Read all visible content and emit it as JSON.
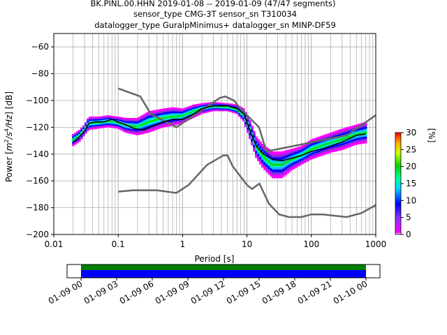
{
  "title": {
    "line1": "BK.PINL.00.HHN   2019-01-08 -- 2019-01-09  (47/47 segments)",
    "line2": "sensor_type CMG-3T sensor_sn T310034",
    "line3": "datalogger_type GuralpMinimus+ datalogger_sn MINP-DF59"
  },
  "chart_data": {
    "type": "heatmap",
    "xlabel": "Period [s]",
    "ylabel_parts": [
      "Power [",
      "m",
      "2",
      "/s",
      "4",
      "/Hz",
      "] [dB]"
    ],
    "xscale": "log",
    "xlim": [
      0.01,
      1000
    ],
    "ylim": [
      -200,
      -50
    ],
    "x_tick_values": [
      0.01,
      0.1,
      1,
      10,
      100,
      1000
    ],
    "x_tick_labels": [
      "0.01",
      "0.1",
      "1",
      "10",
      "100",
      "1000"
    ],
    "y_tick_values": [
      -200,
      -180,
      -160,
      -140,
      -120,
      -100,
      -80,
      -60
    ],
    "y_tick_labels": [
      "−200",
      "−180",
      "−160",
      "−140",
      "−120",
      "−100",
      "−80",
      "−60"
    ],
    "grid": true,
    "colorbar": {
      "label": "[%]",
      "range": [
        0,
        30
      ],
      "tick_values": [
        0,
        5,
        10,
        15,
        20,
        25,
        30
      ],
      "tick_labels": [
        "0",
        "5",
        "10",
        "15",
        "20",
        "25",
        "30"
      ],
      "colormap": "pqlx"
    },
    "noise_models": {
      "high": [
        [
          0.1,
          -91
        ],
        [
          0.22,
          -97
        ],
        [
          0.32,
          -110
        ],
        [
          0.8,
          -120
        ],
        [
          3.8,
          -98
        ],
        [
          4.6,
          -97
        ],
        [
          6.3,
          -100
        ],
        [
          7.9,
          -106
        ],
        [
          15.4,
          -120
        ],
        [
          20,
          -138
        ],
        [
          354.8,
          -126
        ],
        [
          1000,
          -111
        ]
      ],
      "low": [
        [
          0.1,
          -168
        ],
        [
          0.17,
          -167
        ],
        [
          0.4,
          -167
        ],
        [
          0.8,
          -169
        ],
        [
          1.24,
          -163
        ],
        [
          2.4,
          -148
        ],
        [
          4.3,
          -141
        ],
        [
          5,
          -141
        ],
        [
          6,
          -149
        ],
        [
          10,
          -163
        ],
        [
          12,
          -166
        ],
        [
          15.6,
          -162
        ],
        [
          21.9,
          -177
        ],
        [
          31.6,
          -185
        ],
        [
          45,
          -187
        ],
        [
          70,
          -187
        ],
        [
          100,
          -185
        ],
        [
          150,
          -185
        ],
        [
          354.8,
          -187
        ],
        [
          600,
          -184
        ],
        [
          1000,
          -178
        ]
      ]
    },
    "mode_curve": [
      [
        0.02,
        -131
      ],
      [
        0.025,
        -127
      ],
      [
        0.03,
        -123
      ],
      [
        0.035,
        -117
      ],
      [
        0.045,
        -116
      ],
      [
        0.06,
        -116
      ],
      [
        0.08,
        -114
      ],
      [
        0.1,
        -116
      ],
      [
        0.13,
        -118
      ],
      [
        0.18,
        -121
      ],
      [
        0.25,
        -122
      ],
      [
        0.35,
        -119
      ],
      [
        0.5,
        -116
      ],
      [
        0.7,
        -114
      ],
      [
        1,
        -114
      ],
      [
        1.5,
        -110
      ],
      [
        2,
        -106
      ],
      [
        3,
        -104
      ],
      [
        4,
        -104
      ],
      [
        5,
        -104
      ],
      [
        7,
        -106
      ],
      [
        9,
        -110
      ],
      [
        11,
        -122
      ],
      [
        14,
        -134
      ],
      [
        18,
        -140
      ],
      [
        25,
        -144
      ],
      [
        35,
        -145
      ],
      [
        50,
        -143
      ],
      [
        70,
        -141
      ],
      [
        100,
        -138
      ],
      [
        150,
        -136
      ],
      [
        200,
        -134
      ],
      [
        300,
        -131
      ],
      [
        500,
        -126
      ],
      [
        700,
        -125
      ]
    ],
    "psd_band": [
      [
        0.02,
        -134,
        -125
      ],
      [
        0.025,
        -131,
        -122
      ],
      [
        0.03,
        -126,
        -118
      ],
      [
        0.035,
        -122,
        -112
      ],
      [
        0.05,
        -121,
        -112
      ],
      [
        0.07,
        -120,
        -111
      ],
      [
        0.1,
        -121,
        -112
      ],
      [
        0.13,
        -124,
        -113
      ],
      [
        0.2,
        -126,
        -113
      ],
      [
        0.3,
        -124,
        -108
      ],
      [
        0.5,
        -120,
        -106
      ],
      [
        0.7,
        -119,
        -105
      ],
      [
        1,
        -117,
        -106
      ],
      [
        1.5,
        -113,
        -103
      ],
      [
        2,
        -110,
        -102
      ],
      [
        3,
        -108,
        -101
      ],
      [
        5,
        -108,
        -102
      ],
      [
        7,
        -110,
        -103
      ],
      [
        9,
        -116,
        -106
      ],
      [
        11,
        -128,
        -114
      ],
      [
        14,
        -143,
        -127
      ],
      [
        18,
        -151,
        -133
      ],
      [
        25,
        -158,
        -138
      ],
      [
        35,
        -158,
        -138
      ],
      [
        50,
        -152,
        -136
      ],
      [
        70,
        -148,
        -134
      ],
      [
        100,
        -144,
        -129
      ],
      [
        150,
        -141,
        -126
      ],
      [
        200,
        -139,
        -124
      ],
      [
        300,
        -137,
        -121
      ],
      [
        500,
        -133,
        -118
      ],
      [
        700,
        -132,
        -116
      ]
    ],
    "coverage": {
      "x_tick_labels": [
        "01-09 00",
        "01-09 03",
        "01-09 06",
        "01-09 09",
        "01-09 12",
        "01-09 15",
        "01-09 18",
        "01-09 21",
        "01-10 00"
      ],
      "data_color": "#008000",
      "psd_color": "#0000ff"
    }
  }
}
